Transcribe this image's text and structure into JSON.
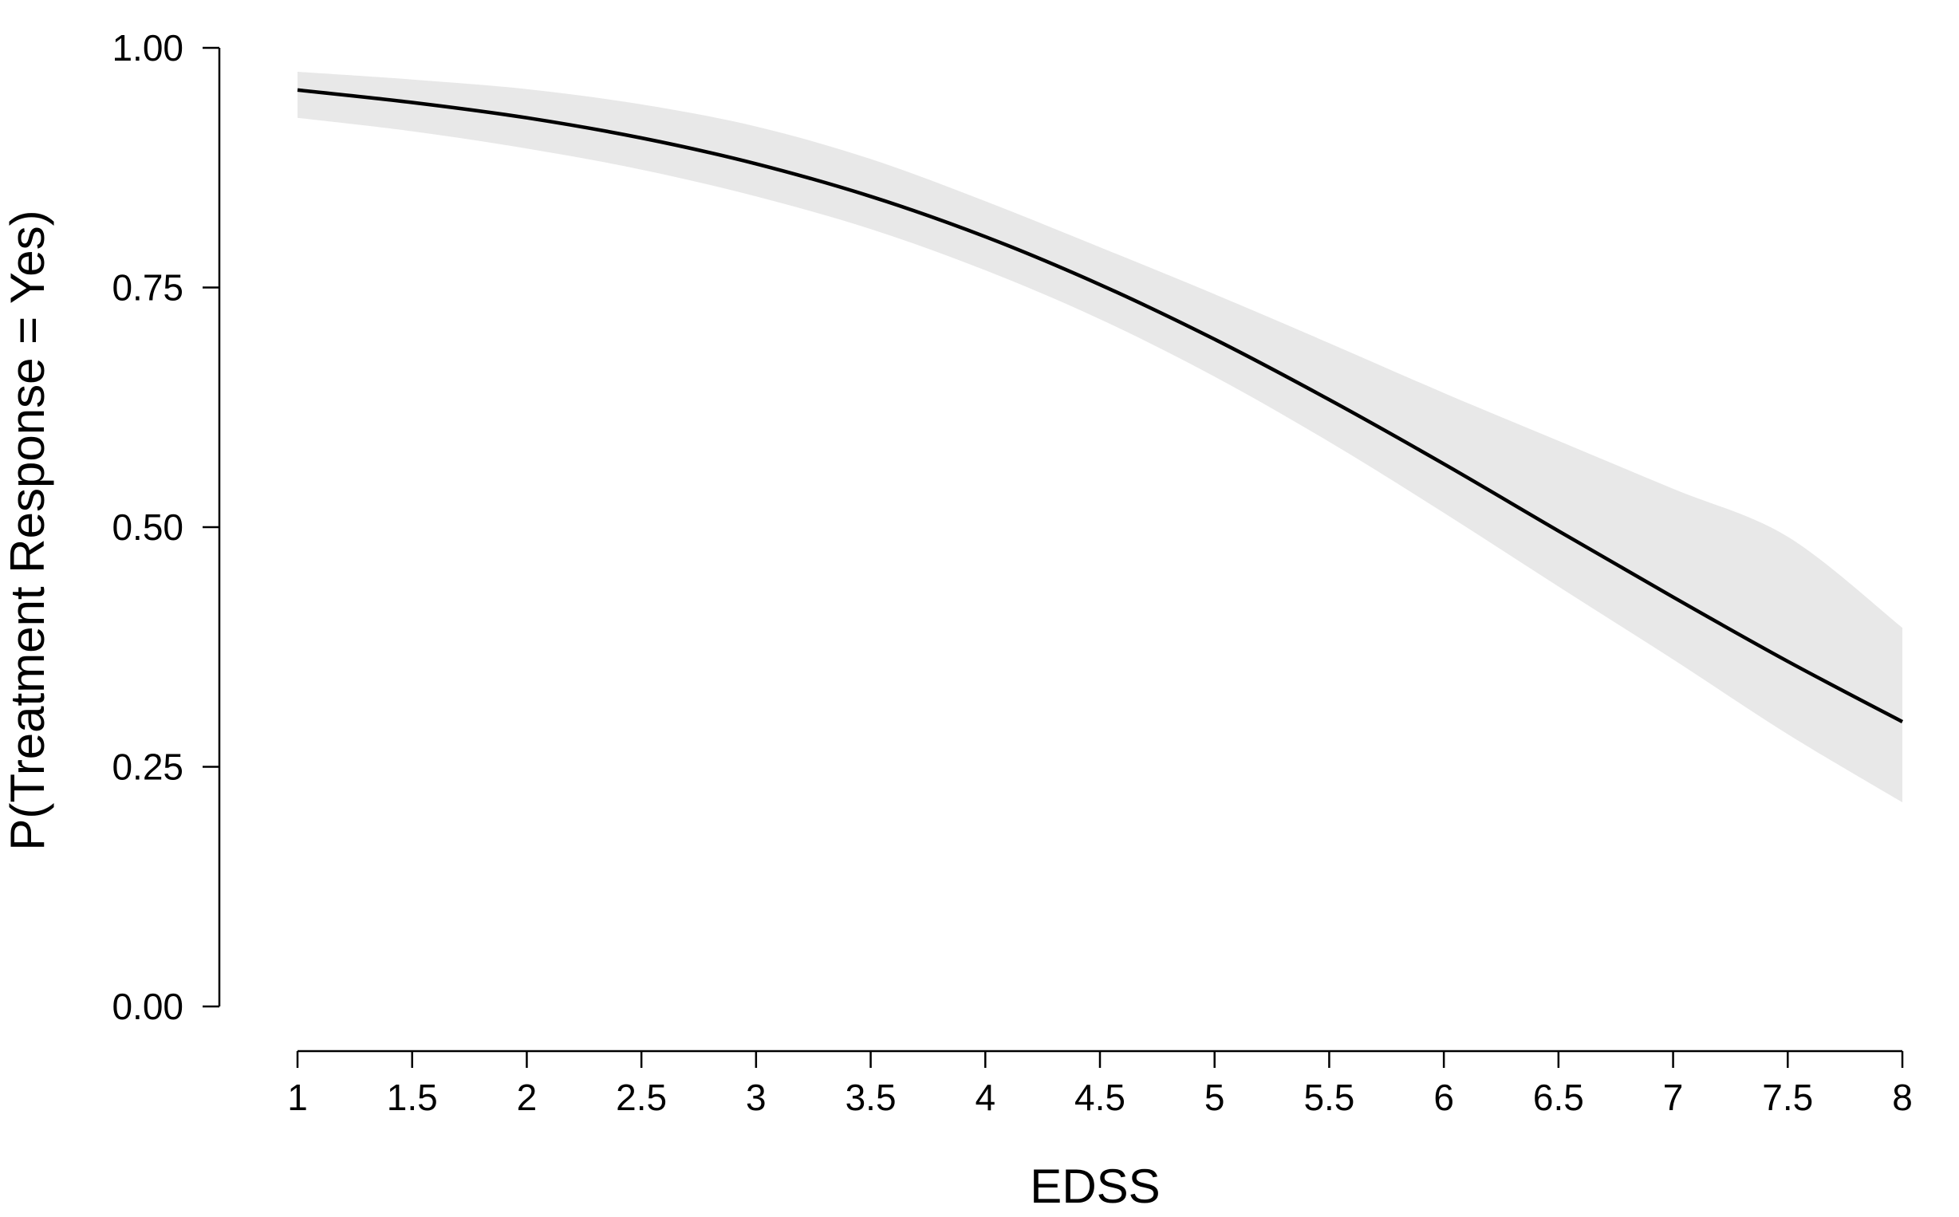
{
  "chart_data": {
    "type": "line",
    "title": "",
    "xlabel": "EDSS",
    "ylabel": "P(Treatment Response = Yes)",
    "xlim": [
      1,
      8
    ],
    "ylim": [
      0,
      1
    ],
    "x_ticks": [
      1,
      1.5,
      2,
      2.5,
      3,
      3.5,
      4,
      4.5,
      5,
      5.5,
      6,
      6.5,
      7,
      7.5,
      8
    ],
    "x_tick_labels": [
      "1",
      "1.5",
      "2",
      "2.5",
      "3",
      "3.5",
      "4",
      "4.5",
      "5",
      "5.5",
      "6",
      "6.5",
      "7",
      "7.5",
      "8"
    ],
    "y_ticks": [
      0,
      0.25,
      0.5,
      0.75,
      1
    ],
    "y_tick_labels": [
      "0.00",
      "0.25",
      "0.50",
      "0.75",
      "1.00"
    ],
    "grid": false,
    "legend": "none",
    "line_color": "#000000",
    "band_color": "#e8e8e8",
    "x": [
      1,
      1.5,
      2,
      2.5,
      3,
      3.5,
      4,
      4.5,
      5,
      5.5,
      6,
      6.5,
      7,
      7.5,
      8
    ],
    "series": [
      {
        "values": [
          0.956,
          0.943,
          0.927,
          0.906,
          0.879,
          0.845,
          0.803,
          0.753,
          0.696,
          0.633,
          0.566,
          0.496,
          0.427,
          0.36,
          0.297
        ],
        "lower": [
          0.927,
          0.913,
          0.895,
          0.873,
          0.845,
          0.811,
          0.768,
          0.717,
          0.657,
          0.589,
          0.515,
          0.438,
          0.362,
          0.284,
          0.213
        ],
        "upper": [
          0.975,
          0.967,
          0.957,
          0.941,
          0.918,
          0.884,
          0.84,
          0.792,
          0.743,
          0.692,
          0.64,
          0.59,
          0.54,
          0.49,
          0.395
        ]
      }
    ]
  }
}
